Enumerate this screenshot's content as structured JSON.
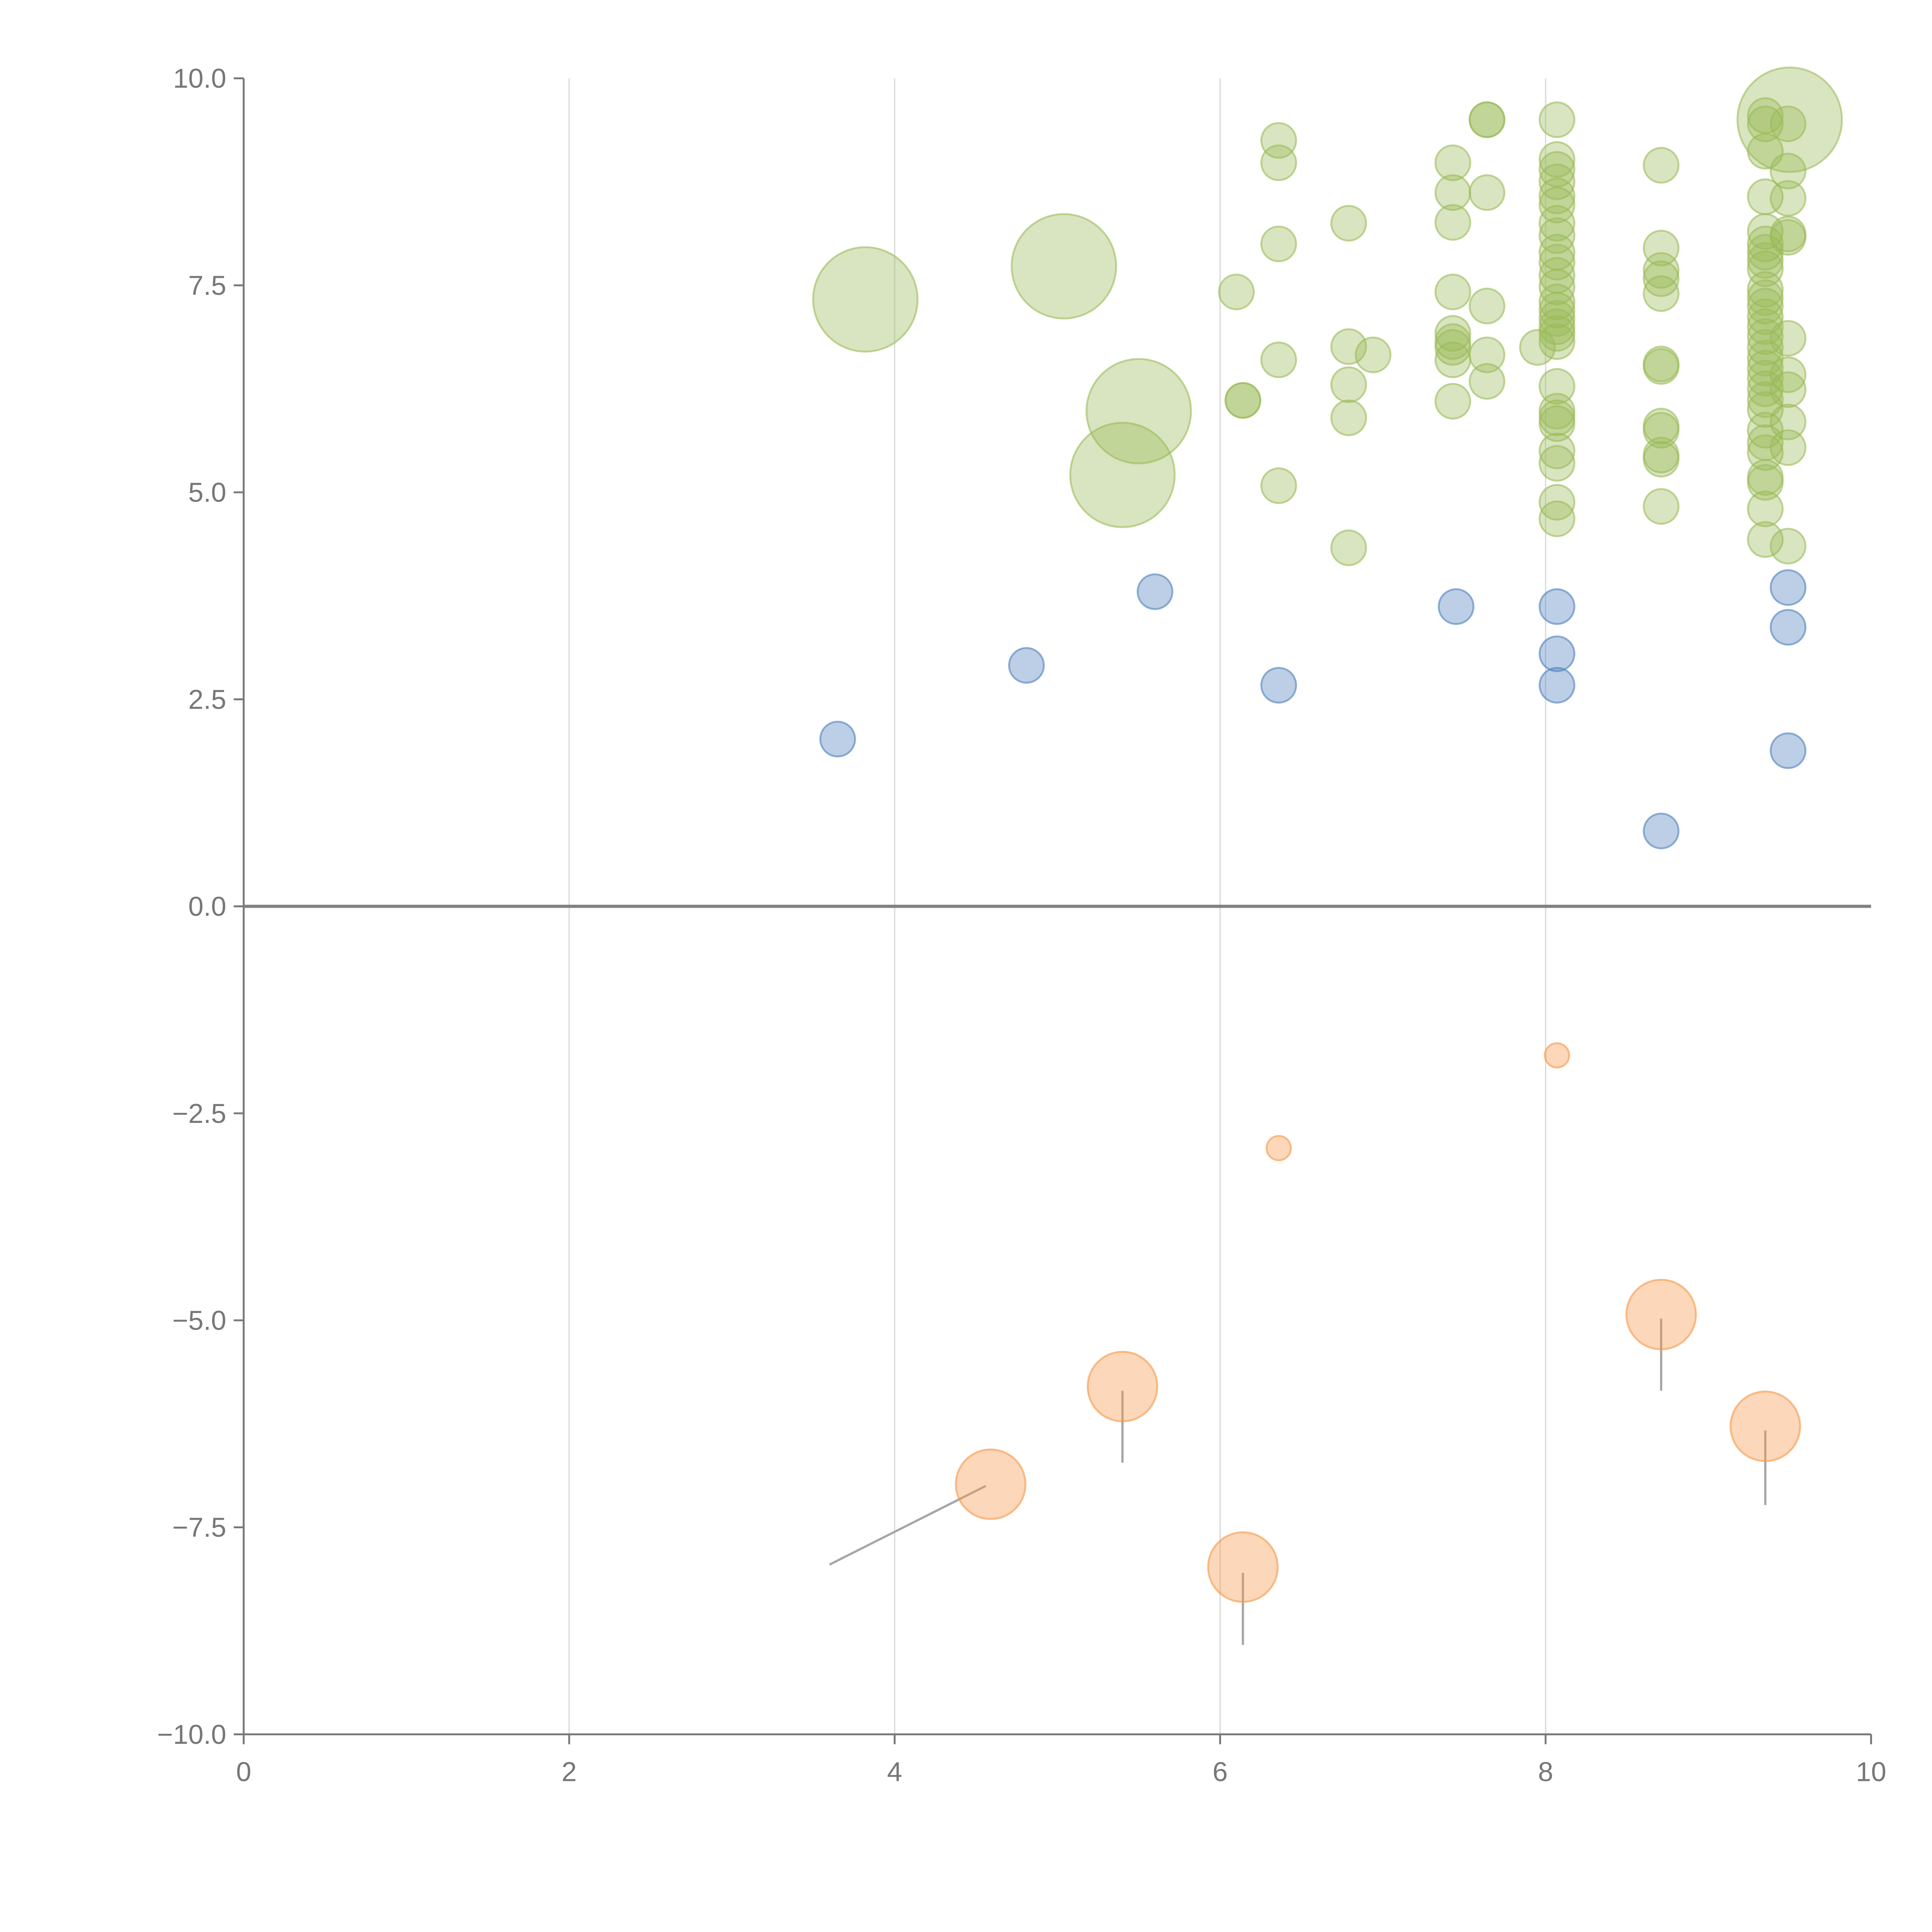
{
  "chart_data": {
    "type": "scatter",
    "title": "",
    "xlabel": "",
    "ylabel": "",
    "xlim": [
      0,
      10
    ],
    "ylim": [
      -10,
      10
    ],
    "grid": "vertical",
    "x_ticks": [
      "0",
      "2",
      "4",
      "6",
      "8",
      "10"
    ],
    "y_ticks": [
      "10.0",
      "7.5",
      "5.0",
      "2.5",
      "0.0",
      "−2.5",
      "−5.0",
      "−7.5",
      "−10.0"
    ],
    "x_tick_values": [
      0,
      2,
      4,
      6,
      8,
      10
    ],
    "y_tick_values": [
      10,
      7.5,
      5,
      2.5,
      0,
      -2.5,
      -5,
      -7.5,
      -10
    ],
    "colors": {
      "green": "#9BBB59",
      "blue": "#4F81BD",
      "orange": "#F79646",
      "axis": "#777777",
      "grid": "#D9D9D9",
      "zero_line": "#808080",
      "leader": "#A6A6A6"
    },
    "series": [
      {
        "name": "green",
        "color": "#9BBB59",
        "points": [
          {
            "x": 3.82,
            "y": 7.33,
            "s": 3
          },
          {
            "x": 5.04,
            "y": 7.73,
            "s": 3
          },
          {
            "x": 5.5,
            "y": 5.98,
            "s": 3
          },
          {
            "x": 5.4,
            "y": 5.21,
            "s": 3
          },
          {
            "x": 9.5,
            "y": 9.5,
            "s": 3
          },
          {
            "x": 6.1,
            "y": 7.42,
            "s": 1
          },
          {
            "x": 6.14,
            "y": 6.11,
            "s": 1
          },
          {
            "x": 6.14,
            "y": 6.11,
            "s": 1
          },
          {
            "x": 6.36,
            "y": 9.25,
            "s": 1
          },
          {
            "x": 6.36,
            "y": 8.98,
            "s": 1
          },
          {
            "x": 6.36,
            "y": 8.0,
            "s": 1
          },
          {
            "x": 6.36,
            "y": 6.6,
            "s": 1
          },
          {
            "x": 6.36,
            "y": 5.08,
            "s": 1
          },
          {
            "x": 6.79,
            "y": 8.25,
            "s": 1
          },
          {
            "x": 6.79,
            "y": 6.76,
            "s": 1
          },
          {
            "x": 6.79,
            "y": 6.3,
            "s": 1
          },
          {
            "x": 6.79,
            "y": 5.9,
            "s": 1
          },
          {
            "x": 6.79,
            "y": 4.33,
            "s": 1
          },
          {
            "x": 6.94,
            "y": 6.66,
            "s": 1
          },
          {
            "x": 7.43,
            "y": 8.98,
            "s": 1
          },
          {
            "x": 7.43,
            "y": 8.62,
            "s": 1
          },
          {
            "x": 7.43,
            "y": 8.26,
            "s": 1
          },
          {
            "x": 7.43,
            "y": 7.42,
            "s": 1
          },
          {
            "x": 7.43,
            "y": 6.92,
            "s": 1
          },
          {
            "x": 7.43,
            "y": 6.82,
            "s": 1
          },
          {
            "x": 7.43,
            "y": 6.75,
            "s": 1
          },
          {
            "x": 7.43,
            "y": 6.6,
            "s": 1
          },
          {
            "x": 7.43,
            "y": 6.1,
            "s": 1
          },
          {
            "x": 7.64,
            "y": 9.5,
            "s": 1
          },
          {
            "x": 7.64,
            "y": 9.5,
            "s": 1
          },
          {
            "x": 7.64,
            "y": 8.62,
            "s": 1
          },
          {
            "x": 7.64,
            "y": 7.25,
            "s": 1
          },
          {
            "x": 7.64,
            "y": 6.66,
            "s": 1
          },
          {
            "x": 7.64,
            "y": 6.34,
            "s": 1
          },
          {
            "x": 7.95,
            "y": 6.75,
            "s": 1
          },
          {
            "x": 8.07,
            "y": 9.5,
            "s": 1
          },
          {
            "x": 8.07,
            "y": 9.02,
            "s": 1
          },
          {
            "x": 8.07,
            "y": 8.9,
            "s": 1
          },
          {
            "x": 8.07,
            "y": 8.75,
            "s": 1
          },
          {
            "x": 8.07,
            "y": 8.58,
            "s": 1
          },
          {
            "x": 8.07,
            "y": 8.47,
            "s": 1
          },
          {
            "x": 8.07,
            "y": 8.25,
            "s": 1
          },
          {
            "x": 8.07,
            "y": 8.1,
            "s": 1
          },
          {
            "x": 8.07,
            "y": 7.9,
            "s": 1
          },
          {
            "x": 8.07,
            "y": 7.78,
            "s": 1
          },
          {
            "x": 8.07,
            "y": 7.62,
            "s": 1
          },
          {
            "x": 8.07,
            "y": 7.48,
            "s": 1
          },
          {
            "x": 8.07,
            "y": 7.3,
            "s": 1
          },
          {
            "x": 8.07,
            "y": 7.2,
            "s": 1
          },
          {
            "x": 8.07,
            "y": 7.1,
            "s": 1
          },
          {
            "x": 8.07,
            "y": 7.0,
            "s": 1
          },
          {
            "x": 8.07,
            "y": 6.92,
            "s": 1
          },
          {
            "x": 8.07,
            "y": 6.82,
            "s": 1
          },
          {
            "x": 8.07,
            "y": 6.28,
            "s": 1
          },
          {
            "x": 8.07,
            "y": 5.98,
            "s": 1
          },
          {
            "x": 8.07,
            "y": 5.9,
            "s": 1
          },
          {
            "x": 8.07,
            "y": 5.83,
            "s": 1
          },
          {
            "x": 8.07,
            "y": 5.5,
            "s": 1
          },
          {
            "x": 8.07,
            "y": 5.35,
            "s": 1
          },
          {
            "x": 8.07,
            "y": 4.88,
            "s": 1
          },
          {
            "x": 8.07,
            "y": 4.68,
            "s": 1
          },
          {
            "x": 8.71,
            "y": 8.95,
            "s": 1
          },
          {
            "x": 8.71,
            "y": 7.95,
            "s": 1
          },
          {
            "x": 8.71,
            "y": 7.68,
            "s": 1
          },
          {
            "x": 8.71,
            "y": 7.58,
            "s": 1
          },
          {
            "x": 8.71,
            "y": 7.4,
            "s": 1
          },
          {
            "x": 8.71,
            "y": 6.55,
            "s": 1
          },
          {
            "x": 8.71,
            "y": 6.52,
            "s": 1
          },
          {
            "x": 8.71,
            "y": 5.8,
            "s": 1
          },
          {
            "x": 8.71,
            "y": 5.75,
            "s": 1
          },
          {
            "x": 8.71,
            "y": 5.45,
            "s": 1
          },
          {
            "x": 8.71,
            "y": 5.4,
            "s": 1
          },
          {
            "x": 8.71,
            "y": 4.83,
            "s": 1
          },
          {
            "x": 9.35,
            "y": 9.55,
            "s": 1
          },
          {
            "x": 9.35,
            "y": 9.45,
            "s": 1
          },
          {
            "x": 9.35,
            "y": 9.12,
            "s": 1
          },
          {
            "x": 9.35,
            "y": 8.57,
            "s": 1
          },
          {
            "x": 9.35,
            "y": 8.15,
            "s": 1
          },
          {
            "x": 9.35,
            "y": 8.0,
            "s": 1
          },
          {
            "x": 9.35,
            "y": 7.9,
            "s": 1
          },
          {
            "x": 9.35,
            "y": 7.8,
            "s": 1
          },
          {
            "x": 9.35,
            "y": 7.7,
            "s": 1
          },
          {
            "x": 9.35,
            "y": 7.45,
            "s": 1
          },
          {
            "x": 9.35,
            "y": 7.35,
            "s": 1
          },
          {
            "x": 9.35,
            "y": 7.25,
            "s": 1
          },
          {
            "x": 9.35,
            "y": 7.12,
            "s": 1
          },
          {
            "x": 9.35,
            "y": 7.0,
            "s": 1
          },
          {
            "x": 9.35,
            "y": 6.88,
            "s": 1
          },
          {
            "x": 9.35,
            "y": 6.75,
            "s": 1
          },
          {
            "x": 9.35,
            "y": 6.62,
            "s": 1
          },
          {
            "x": 9.35,
            "y": 6.5,
            "s": 1
          },
          {
            "x": 9.35,
            "y": 6.38,
            "s": 1
          },
          {
            "x": 9.35,
            "y": 6.25,
            "s": 1
          },
          {
            "x": 9.35,
            "y": 6.12,
            "s": 1
          },
          {
            "x": 9.35,
            "y": 6.0,
            "s": 1
          },
          {
            "x": 9.35,
            "y": 5.75,
            "s": 1
          },
          {
            "x": 9.35,
            "y": 5.6,
            "s": 1
          },
          {
            "x": 9.35,
            "y": 5.48,
            "s": 1
          },
          {
            "x": 9.35,
            "y": 5.18,
            "s": 1
          },
          {
            "x": 9.35,
            "y": 5.12,
            "s": 1
          },
          {
            "x": 9.35,
            "y": 4.8,
            "s": 1
          },
          {
            "x": 9.35,
            "y": 4.43,
            "s": 1
          },
          {
            "x": 9.49,
            "y": 9.45,
            "s": 1
          },
          {
            "x": 9.49,
            "y": 8.88,
            "s": 1
          },
          {
            "x": 9.49,
            "y": 8.55,
            "s": 1
          },
          {
            "x": 9.49,
            "y": 8.12,
            "s": 1
          },
          {
            "x": 9.49,
            "y": 8.08,
            "s": 1
          },
          {
            "x": 9.49,
            "y": 6.86,
            "s": 1
          },
          {
            "x": 9.49,
            "y": 6.42,
            "s": 1
          },
          {
            "x": 9.49,
            "y": 6.24,
            "s": 1
          },
          {
            "x": 9.49,
            "y": 5.85,
            "s": 1
          },
          {
            "x": 9.49,
            "y": 5.54,
            "s": 1
          },
          {
            "x": 9.49,
            "y": 4.35,
            "s": 1
          }
        ]
      },
      {
        "name": "blue",
        "color": "#4F81BD",
        "points": [
          {
            "x": 3.65,
            "y": 2.02,
            "s": 1
          },
          {
            "x": 4.81,
            "y": 2.91,
            "s": 1
          },
          {
            "x": 5.6,
            "y": 3.8,
            "s": 1
          },
          {
            "x": 6.36,
            "y": 2.67,
            "s": 1
          },
          {
            "x": 7.45,
            "y": 3.62,
            "s": 1
          },
          {
            "x": 8.07,
            "y": 3.62,
            "s": 1
          },
          {
            "x": 8.07,
            "y": 3.05,
            "s": 1
          },
          {
            "x": 8.07,
            "y": 2.67,
            "s": 1
          },
          {
            "x": 8.71,
            "y": 0.91,
            "s": 1
          },
          {
            "x": 9.49,
            "y": 3.85,
            "s": 1
          },
          {
            "x": 9.49,
            "y": 3.37,
            "s": 1
          },
          {
            "x": 9.49,
            "y": 1.88,
            "s": 1
          }
        ]
      },
      {
        "name": "orange",
        "color": "#F79646",
        "points": [
          {
            "x": 6.36,
            "y": -2.92,
            "s": 0.7
          },
          {
            "x": 8.07,
            "y": -1.8,
            "s": 0.7
          },
          {
            "x": 4.59,
            "y": -6.98,
            "s": 2
          },
          {
            "x": 5.4,
            "y": -5.8,
            "s": 2
          },
          {
            "x": 6.14,
            "y": -7.98,
            "s": 2
          },
          {
            "x": 8.71,
            "y": -4.93,
            "s": 2
          },
          {
            "x": 9.35,
            "y": -6.28,
            "s": 2
          }
        ]
      }
    ],
    "leader_lines": [
      {
        "x1": 4.56,
        "y1": -7.0,
        "x2": 3.6,
        "y2": -7.95
      },
      {
        "x1": 5.4,
        "y1": -5.85,
        "x2": 5.4,
        "y2": -6.72
      },
      {
        "x1": 6.14,
        "y1": -8.05,
        "x2": 6.14,
        "y2": -8.92
      },
      {
        "x1": 8.71,
        "y1": -4.98,
        "x2": 8.71,
        "y2": -5.85
      },
      {
        "x1": 9.35,
        "y1": -6.33,
        "x2": 9.35,
        "y2": -7.23
      }
    ]
  }
}
